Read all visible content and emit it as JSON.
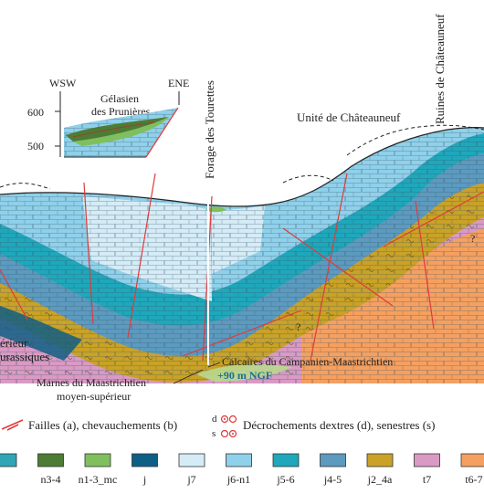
{
  "inset": {
    "left_direction": "WSW",
    "right_direction": "ENE",
    "title_line1": "Gélasien",
    "title_line2": "des Prunières",
    "tick_600": "600",
    "tick_500": "500"
  },
  "labels": {
    "unite_chateauneuf": "Unité de Châteauneuf",
    "ruines_chateauneuf": "Ruines de Châteauneuf",
    "forage_tourettes": "Forage des Tourettes",
    "superieur_fragment": "érieur",
    "jurassiques_fragment": "urassiques",
    "calcaires_campanien": "Calcaires du Campanien-Maastrichtien",
    "marnes_line1": "Marnes du Maastrichtien",
    "marnes_line2": "moyen-supérieur",
    "ngf": "+90 m NGF",
    "question_1": "?",
    "question_2": "?"
  },
  "legend": {
    "failles": "Failles (a), chevauchements (b)",
    "decrochements": "Décrochements dextres (d), senestres (s)",
    "mark_d": "d",
    "mark_s": "s",
    "units": [
      {
        "code": "",
        "color": "#2fa5b6"
      },
      {
        "code": "n3-4",
        "color": "#4d7c34"
      },
      {
        "code": "n1-3_mc",
        "color": "#7fbf5e"
      },
      {
        "code": "j",
        "color": "#0e5f86"
      },
      {
        "code": "j7",
        "color": "#d5ecf7"
      },
      {
        "code": "j6-n1",
        "color": "#8fd0ea"
      },
      {
        "code": "j5-6",
        "color": "#1fa7bb"
      },
      {
        "code": "j4-5",
        "color": "#5c9abf"
      },
      {
        "code": "j2_4a",
        "color": "#c9a227"
      },
      {
        "code": "t7",
        "color": "#d99ac4"
      },
      {
        "code": "t6-7",
        "color": "#f5a060"
      }
    ]
  }
}
